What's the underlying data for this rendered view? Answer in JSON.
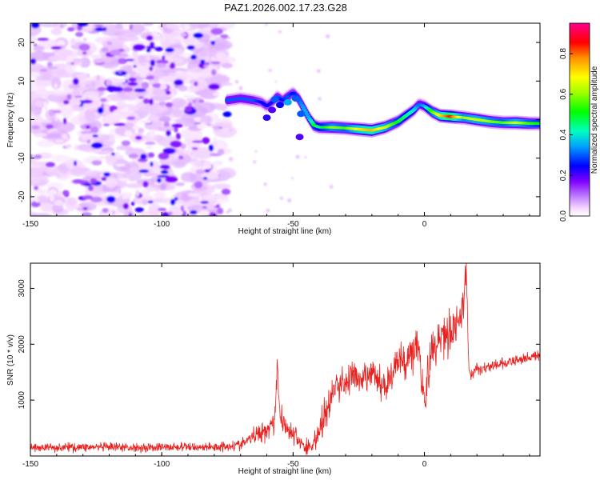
{
  "figure_title": "PAZ1.2026.002.17.23.G28",
  "chart_data": [
    {
      "type": "heatmap",
      "title": "PAZ1.2026.002.17.23.G28",
      "xlabel": "Height of straight line (km)",
      "ylabel": "Frequency (Hz)",
      "xlim": [
        -150,
        44
      ],
      "ylim": [
        -25,
        25
      ],
      "x_ticks": [
        -150,
        -100,
        -50,
        0
      ],
      "y_ticks": [
        -20,
        -10,
        0,
        10,
        20
      ],
      "colorbar": {
        "label": "Normalized spectral amplitude",
        "range": [
          0,
          0.95
        ],
        "ticks": [
          0.0,
          0.2,
          0.4,
          0.6,
          0.8
        ],
        "colormap": [
          "#ffffff",
          "#ff40ff",
          "#8000ff",
          "#0000ff",
          "#00c0ff",
          "#00ff80",
          "#00ff00",
          "#a0ff00",
          "#ffff00",
          "#ffa000",
          "#ff0000",
          "#ff0080"
        ]
      },
      "noise_region_x": [
        -150,
        -75
      ],
      "noise_amplitude_range": [
        0.02,
        0.25
      ],
      "ridge": {
        "x": [
          -75,
          -70,
          -65,
          -62,
          -60,
          -58,
          -56,
          -54,
          -52,
          -50,
          -48,
          -46,
          -44,
          -42,
          -40,
          -35,
          -30,
          -25,
          -20,
          -15,
          -10,
          -7,
          -4,
          -2,
          0,
          3,
          6,
          10,
          15,
          20,
          25,
          30,
          35,
          40,
          44
        ],
        "frequency_hz": [
          5,
          5.5,
          5,
          4.5,
          3.5,
          4.5,
          6,
          5,
          6,
          7,
          5.5,
          3,
          0.5,
          -1.5,
          -2,
          -2,
          -2.2,
          -2.5,
          -2.8,
          -2,
          -0.5,
          1,
          2.5,
          4,
          3.5,
          2,
          1,
          0.8,
          0.5,
          0,
          -0.5,
          -0.8,
          -0.8,
          -1,
          -1
        ],
        "amplitude": [
          0.3,
          0.3,
          0.3,
          0.25,
          0.25,
          0.22,
          0.3,
          0.25,
          0.3,
          0.25,
          0.3,
          0.35,
          0.35,
          0.5,
          0.45,
          0.6,
          0.55,
          0.7,
          0.75,
          0.65,
          0.5,
          0.45,
          0.4,
          0.3,
          0.35,
          0.55,
          0.7,
          0.85,
          0.6,
          0.65,
          0.6,
          0.55,
          0.65,
          0.55,
          0.5
        ]
      }
    },
    {
      "type": "line",
      "title": "",
      "xlabel": "Height of straight line (km)",
      "ylabel": "SNR (10 * v/v)",
      "xlim": [
        -150,
        44
      ],
      "ylim": [
        0,
        3450
      ],
      "x_ticks": [
        -150,
        -100,
        -50,
        0
      ],
      "y_ticks": [
        1000,
        2000,
        3000
      ],
      "series": [
        {
          "name": "SNR",
          "color": "#e8211e",
          "x": [
            -150,
            -130,
            -110,
            -95,
            -80,
            -70,
            -65,
            -60,
            -57,
            -56,
            -55,
            -52,
            -50,
            -47,
            -45,
            -43,
            -41,
            -38,
            -35,
            -33,
            -30,
            -27,
            -25,
            -22,
            -20,
            -17,
            -15,
            -12,
            -10,
            -7,
            -5,
            -3,
            -2,
            -1,
            0,
            2,
            5,
            8,
            10,
            12,
            14,
            15,
            16,
            17,
            20,
            25,
            30,
            35,
            40,
            44
          ],
          "y": [
            150,
            160,
            150,
            160,
            160,
            200,
            350,
            480,
            650,
            1700,
            700,
            500,
            380,
            250,
            130,
            180,
            350,
            700,
            1100,
            1300,
            1300,
            1500,
            1250,
            1400,
            1500,
            1300,
            1250,
            1500,
            1700,
            1700,
            1850,
            2000,
            2100,
            1500,
            900,
            1700,
            2100,
            2200,
            2250,
            2350,
            2550,
            2700,
            3300,
            1450,
            1550,
            1600,
            1650,
            1700,
            1780,
            1780
          ],
          "noise_spread": [
            120,
            120,
            120,
            120,
            120,
            150,
            250,
            300,
            350,
            400,
            350,
            300,
            250,
            250,
            250,
            300,
            400,
            500,
            500,
            500,
            450,
            450,
            450,
            450,
            400,
            400,
            400,
            450,
            500,
            500,
            600,
            700,
            700,
            800,
            900,
            700,
            600,
            600,
            500,
            500,
            500,
            500,
            500,
            200,
            160,
            150,
            150,
            150,
            150,
            150
          ]
        }
      ]
    }
  ]
}
